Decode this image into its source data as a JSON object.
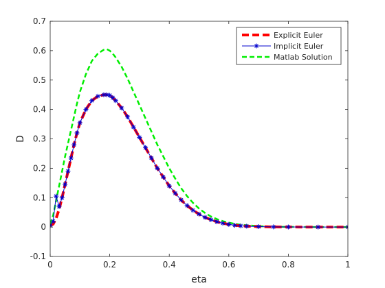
{
  "chart_data": {
    "type": "line",
    "xlabel": "eta",
    "ylabel": "D",
    "xlim": [
      0,
      1
    ],
    "ylim": [
      -0.1,
      0.7
    ],
    "x_ticks": [
      "0",
      "0.2",
      "0.4",
      "0.6",
      "0.8",
      "1"
    ],
    "y_ticks": [
      "-0.1",
      "0",
      "0.1",
      "0.2",
      "0.3",
      "0.4",
      "0.5",
      "0.6",
      "0.7"
    ],
    "grid": false,
    "legend_position": "top-right",
    "series": [
      {
        "name": "Explicit Euler",
        "color": "#ff0000",
        "style": "dashed-thick",
        "x": [
          0,
          0.01,
          0.02,
          0.03,
          0.04,
          0.05,
          0.06,
          0.07,
          0.08,
          0.09,
          0.1,
          0.12,
          0.14,
          0.16,
          0.18,
          0.19,
          0.2,
          0.21,
          0.22,
          0.24,
          0.26,
          0.28,
          0.3,
          0.32,
          0.34,
          0.36,
          0.38,
          0.4,
          0.42,
          0.44,
          0.46,
          0.48,
          0.5,
          0.52,
          0.54,
          0.56,
          0.58,
          0.6,
          0.62,
          0.64,
          0.66,
          0.7,
          0.75,
          0.8,
          0.9,
          1.0
        ],
        "y": [
          0.005,
          0.01,
          0.03,
          0.06,
          0.1,
          0.145,
          0.19,
          0.235,
          0.28,
          0.32,
          0.355,
          0.4,
          0.43,
          0.445,
          0.45,
          0.45,
          0.448,
          0.44,
          0.43,
          0.405,
          0.375,
          0.34,
          0.305,
          0.27,
          0.235,
          0.2,
          0.17,
          0.14,
          0.115,
          0.092,
          0.073,
          0.057,
          0.044,
          0.033,
          0.025,
          0.018,
          0.013,
          0.009,
          0.006,
          0.004,
          0.003,
          0.0015,
          0.0006,
          0.0002,
          0.0,
          0.0
        ]
      },
      {
        "name": "Implicit Euler",
        "color": "#0000cc",
        "style": "solid-star",
        "x": [
          0,
          0.01,
          0.02,
          0.03,
          0.04,
          0.05,
          0.06,
          0.07,
          0.08,
          0.09,
          0.1,
          0.12,
          0.14,
          0.16,
          0.18,
          0.19,
          0.2,
          0.21,
          0.22,
          0.24,
          0.26,
          0.28,
          0.3,
          0.32,
          0.34,
          0.36,
          0.38,
          0.4,
          0.42,
          0.44,
          0.46,
          0.48,
          0.5,
          0.52,
          0.54,
          0.56,
          0.58,
          0.6,
          0.62,
          0.64,
          0.66,
          0.7,
          0.75,
          0.8,
          0.9,
          1.0
        ],
        "y": [
          0.005,
          0.02,
          0.105,
          0.07,
          0.1,
          0.145,
          0.19,
          0.235,
          0.28,
          0.32,
          0.355,
          0.4,
          0.43,
          0.445,
          0.45,
          0.45,
          0.448,
          0.44,
          0.43,
          0.405,
          0.375,
          0.34,
          0.305,
          0.27,
          0.235,
          0.2,
          0.17,
          0.14,
          0.115,
          0.092,
          0.073,
          0.057,
          0.044,
          0.033,
          0.025,
          0.018,
          0.013,
          0.009,
          0.006,
          0.004,
          0.003,
          0.0015,
          0.0006,
          0.0002,
          0.0,
          0.0
        ]
      },
      {
        "name": "Matlab Solution",
        "color": "#00ee00",
        "style": "dashed",
        "x": [
          0,
          0.01,
          0.02,
          0.03,
          0.04,
          0.05,
          0.06,
          0.07,
          0.08,
          0.09,
          0.1,
          0.12,
          0.14,
          0.16,
          0.18,
          0.19,
          0.2,
          0.21,
          0.22,
          0.24,
          0.26,
          0.28,
          0.3,
          0.32,
          0.34,
          0.36,
          0.38,
          0.4,
          0.42,
          0.44,
          0.46,
          0.48,
          0.5,
          0.52,
          0.54,
          0.56,
          0.58,
          0.6,
          0.62,
          0.64,
          0.66,
          0.7,
          0.75,
          0.8,
          0.9,
          1.0
        ],
        "y": [
          0.01,
          0.04,
          0.09,
          0.14,
          0.19,
          0.24,
          0.285,
          0.33,
          0.375,
          0.42,
          0.46,
          0.52,
          0.565,
          0.59,
          0.603,
          0.605,
          0.6,
          0.59,
          0.577,
          0.545,
          0.505,
          0.46,
          0.415,
          0.37,
          0.325,
          0.28,
          0.24,
          0.2,
          0.165,
          0.132,
          0.105,
          0.082,
          0.063,
          0.048,
          0.036,
          0.027,
          0.02,
          0.015,
          0.011,
          0.008,
          0.006,
          0.003,
          0.0015,
          0.0006,
          0.0001,
          0.0
        ]
      }
    ]
  }
}
